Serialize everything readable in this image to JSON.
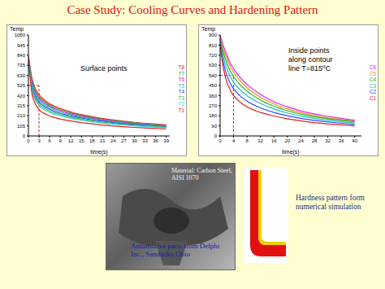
{
  "title": "Case Study: Cooling Curves and Hardening Pattern",
  "chart_data": [
    {
      "type": "line",
      "y_label": "Temp",
      "x_label": "time(s)",
      "annotation": [
        "Surface points"
      ],
      "x": [
        0,
        1,
        2,
        3,
        5,
        8,
        12,
        16,
        20,
        25,
        30,
        35,
        39
      ],
      "xlim": [
        0,
        40
      ],
      "xticks": [
        0,
        3,
        6,
        9,
        12,
        15,
        18,
        21,
        24,
        27,
        30,
        33,
        36,
        39
      ],
      "ylim": [
        0,
        1050
      ],
      "yticks": [
        0,
        105,
        210,
        315,
        420,
        525,
        630,
        735,
        840,
        945,
        1050
      ],
      "dashed_guide": {
        "x": 3,
        "y": 525
      },
      "series": [
        {
          "name": "T8",
          "color": "#ff2020",
          "values": [
            830,
            600,
            490,
            430,
            360,
            300,
            250,
            215,
            188,
            162,
            142,
            126,
            115
          ]
        },
        {
          "name": "T7",
          "color": "#20b020",
          "values": [
            830,
            580,
            470,
            410,
            345,
            288,
            240,
            207,
            180,
            155,
            136,
            121,
            110
          ]
        },
        {
          "name": "T6",
          "color": "#e020e0",
          "values": [
            830,
            560,
            450,
            392,
            330,
            275,
            230,
            198,
            172,
            148,
            130,
            116,
            105
          ]
        },
        {
          "name": "T5",
          "color": "#20c0c0",
          "values": [
            830,
            540,
            430,
            375,
            315,
            262,
            220,
            190,
            165,
            142,
            125,
            111,
            100
          ]
        },
        {
          "name": "T4",
          "color": "#2050ff",
          "values": [
            830,
            520,
            410,
            355,
            298,
            248,
            208,
            180,
            157,
            135,
            119,
            106,
            95
          ]
        },
        {
          "name": "T3",
          "color": "#40c040",
          "values": [
            830,
            500,
            390,
            335,
            280,
            234,
            196,
            170,
            148,
            127,
            112,
            100,
            90
          ]
        },
        {
          "name": "T2",
          "color": "#30d0d0",
          "values": [
            830,
            480,
            370,
            315,
            262,
            218,
            183,
            158,
            138,
            119,
            105,
            94,
            85
          ]
        },
        {
          "name": "T1",
          "color": "#e02020",
          "values": [
            830,
            440,
            330,
            275,
            225,
            185,
            155,
            134,
            117,
            101,
            89,
            80,
            72
          ]
        }
      ]
    },
    {
      "type": "line",
      "y_label": "Temp",
      "x_label": "time(s)",
      "annotation": [
        "Inside points",
        "along contour",
        "line T=815ºC"
      ],
      "x": [
        0,
        1,
        2,
        3,
        4,
        6,
        8,
        12,
        16,
        20,
        25,
        30,
        35,
        40
      ],
      "xlim": [
        0,
        42
      ],
      "xticks": [
        0,
        4,
        8,
        12,
        16,
        20,
        24,
        28,
        32,
        36,
        40
      ],
      "ylim": [
        0,
        900
      ],
      "yticks": [
        0,
        90,
        180,
        270,
        360,
        450,
        540,
        630,
        720,
        810,
        900
      ],
      "dashed_guide": {
        "x": 4,
        "y": 540
      },
      "series": [
        {
          "name": "C6",
          "color": "#e020e0",
          "values": [
            900,
            800,
            720,
            650,
            600,
            520,
            460,
            370,
            305,
            260,
            215,
            185,
            160,
            140
          ]
        },
        {
          "name": "C5",
          "color": "#f09020",
          "values": [
            870,
            770,
            690,
            620,
            570,
            490,
            430,
            345,
            285,
            242,
            200,
            172,
            150,
            132
          ]
        },
        {
          "name": "C4",
          "color": "#20b020",
          "values": [
            860,
            740,
            650,
            580,
            530,
            455,
            400,
            320,
            265,
            225,
            188,
            162,
            142,
            125
          ]
        },
        {
          "name": "C3",
          "color": "#20c0c0",
          "values": [
            840,
            700,
            600,
            530,
            480,
            410,
            360,
            290,
            240,
            205,
            172,
            148,
            130,
            115
          ]
        },
        {
          "name": "C2",
          "color": "#2050ff",
          "values": [
            820,
            650,
            540,
            470,
            420,
            355,
            310,
            250,
            210,
            180,
            152,
            132,
            116,
            103
          ]
        },
        {
          "name": "C1",
          "color": "#e02020",
          "values": [
            815,
            600,
            480,
            410,
            360,
            300,
            260,
            210,
            178,
            153,
            130,
            113,
            100,
            90
          ]
        }
      ]
    }
  ],
  "photo": {
    "material": "Material: Carbon Steel, AISI 1070",
    "caption": "Automotive parts from Delphi Inc., Sandusky,Ohio"
  },
  "simulation": {
    "caption": "Hardness pattern form numerical simulation"
  }
}
